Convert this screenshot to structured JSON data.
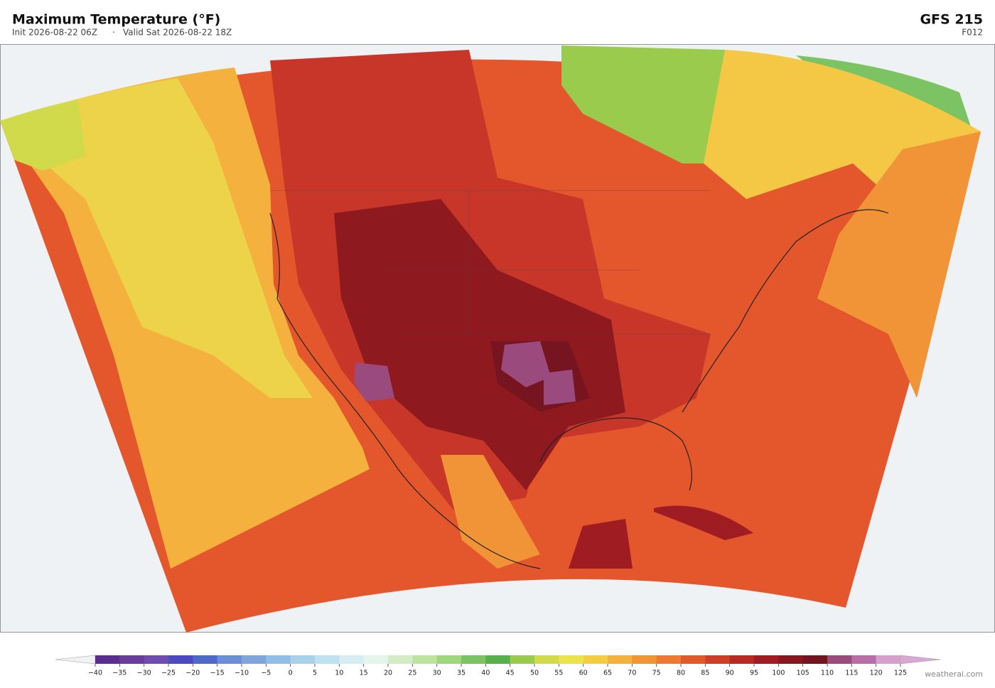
{
  "header": {
    "title": "Maximum Temperature  (°F)",
    "init": "Init 2026-08-22 06Z",
    "separator": "·",
    "valid": "Valid Sat 2026-08-22 18Z",
    "model": "GFS  215",
    "forecast_hour": "F012"
  },
  "colorbar": {
    "lim": [
      -40,
      125
    ],
    "under_color": "#f2f2f2",
    "over_color": "#d9a6d6",
    "ticks": [
      {
        "value": -40,
        "label": "−40"
      },
      {
        "value": -35,
        "label": "−35"
      },
      {
        "value": -30,
        "label": "−30"
      },
      {
        "value": -25,
        "label": "−25"
      },
      {
        "value": -20,
        "label": "−20"
      },
      {
        "value": -15,
        "label": "−15"
      },
      {
        "value": -10,
        "label": "−10"
      },
      {
        "value": -5,
        "label": "−5"
      },
      0,
      5,
      10,
      15,
      20,
      25,
      30,
      35,
      40,
      45,
      50,
      55,
      60,
      65,
      70,
      75,
      80,
      85,
      90,
      95,
      100,
      105,
      110,
      115,
      120,
      125
    ],
    "colors": [
      "#5c2d91",
      "#6a3d9a",
      "#6f4db0",
      "#4b4bbf",
      "#5068c8",
      "#6a8fd6",
      "#7fa6dc",
      "#92bde4",
      "#a9d2ea",
      "#c0e2f0",
      "#d6eef3",
      "#e6f5ec",
      "#d4ecc4",
      "#bde3a0",
      "#9fd67e",
      "#7cc463",
      "#58b04a",
      "#9bcb4d",
      "#d0da4a",
      "#ece34a",
      "#f4cd45",
      "#f4b13e",
      "#f09437",
      "#ec7a32",
      "#e25a2a",
      "#cf3e26",
      "#b82b24",
      "#9e1c22",
      "#871820",
      "#74141e",
      "#9a4a7c",
      "#b86ea8",
      "#d5a0cc"
    ]
  },
  "footer": {
    "watermark": "weatherai.com"
  }
}
